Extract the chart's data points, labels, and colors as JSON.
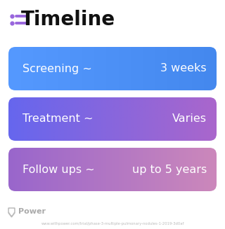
{
  "title": "Timeline",
  "background_color": "#ffffff",
  "icon_color": "#9966dd",
  "rows": [
    {
      "label": "Screening ~",
      "value": "3 weeks",
      "color_left": "#5599ff",
      "color_right": "#4488ee"
    },
    {
      "label": "Treatment ~",
      "value": "Varies",
      "color_left": "#6666ee",
      "color_right": "#aa66cc"
    },
    {
      "label": "Follow ups ~",
      "value": "up to 5 years",
      "color_left": "#9966cc",
      "color_right": "#cc88bb"
    }
  ],
  "footer_logo_text": "Power",
  "footer_url": "www.withpower.com/trial/phase-3-multiple-pulmonary-nodules-1-2019-3d0af",
  "title_fontsize": 20,
  "row_fontsize": 11.5
}
